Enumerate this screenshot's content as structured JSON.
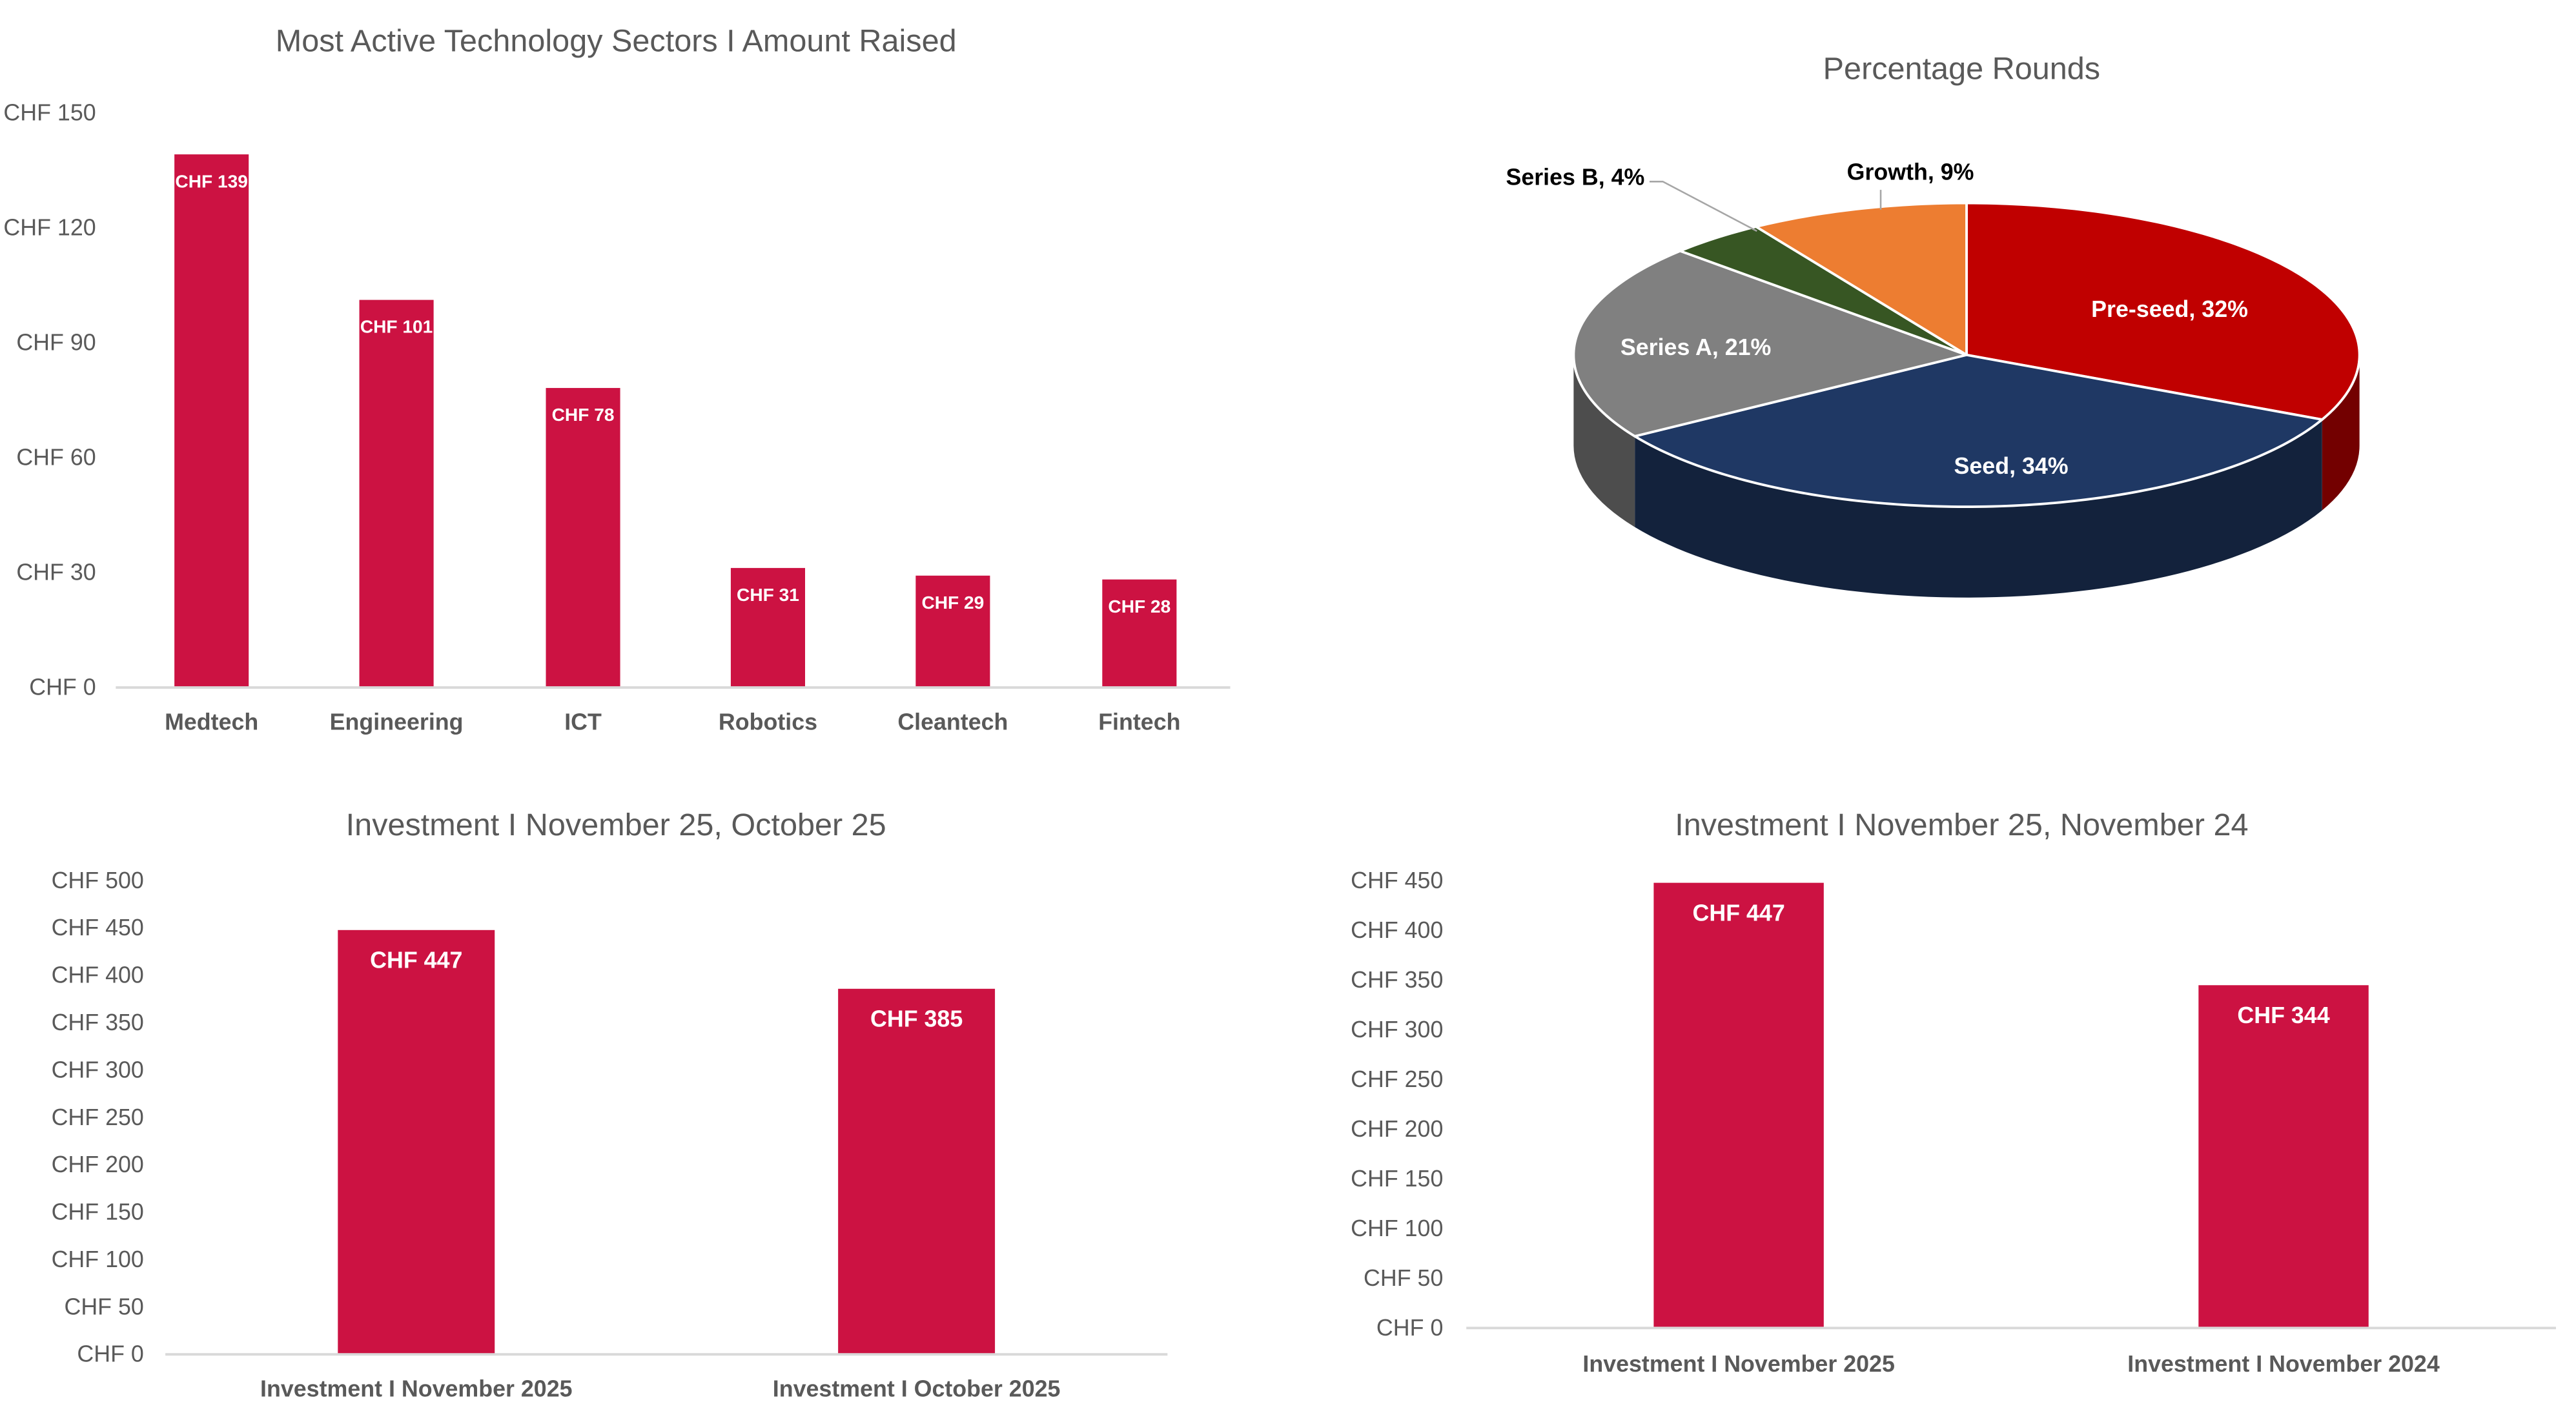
{
  "colors": {
    "bar": "#CC1242",
    "axis": "#D9D9D9",
    "text": "#595959"
  },
  "chart_data": [
    {
      "type": "bar",
      "title": "Most Active Technology Sectors I Amount Raised",
      "categories": [
        "Medtech",
        "Engineering",
        "ICT",
        "Robotics",
        "Cleantech",
        "Fintech"
      ],
      "values": [
        139,
        101,
        78,
        31,
        29,
        28
      ],
      "data_labels": [
        "CHF 139",
        "CHF 101",
        "CHF 78",
        "CHF 31",
        "CHF 29",
        "CHF 28"
      ],
      "yticks": [
        "CHF 0",
        "CHF 30",
        "CHF 60",
        "CHF 90",
        "CHF 120",
        "CHF 150"
      ],
      "ylim": [
        0,
        150
      ],
      "grid": false
    },
    {
      "type": "pie",
      "style": "3d",
      "title": "Percentage Rounds",
      "categories": [
        "Pre-seed",
        "Seed",
        "Series A",
        "Series B",
        "Growth"
      ],
      "values": [
        32,
        34,
        21,
        4,
        9
      ],
      "data_labels": [
        "Pre-seed, 32%",
        "Seed, 34%",
        "Series A, 21%",
        "Series B, 4%",
        "Growth, 9%"
      ],
      "colors": [
        "#C00000",
        "#1F3864",
        "#808080",
        "#375623",
        "#ED7D31"
      ]
    },
    {
      "type": "bar",
      "title": "Investment I November 25, October 25",
      "categories": [
        "Investment I November 2025",
        "Investment I October 2025"
      ],
      "values": [
        447,
        385
      ],
      "data_labels": [
        "CHF 447",
        "CHF 385"
      ],
      "yticks": [
        "CHF 0",
        "CHF 50",
        "CHF 100",
        "CHF 150",
        "CHF 200",
        "CHF 250",
        "CHF 300",
        "CHF 350",
        "CHF 400",
        "CHF 450",
        "CHF 500"
      ],
      "ylim": [
        0,
        500
      ],
      "grid": false
    },
    {
      "type": "bar",
      "title": "Investment I November 25, November 24",
      "categories": [
        "Investment I November 2025",
        "Investment I November 2024"
      ],
      "values": [
        447,
        344
      ],
      "data_labels": [
        "CHF 447",
        "CHF 344"
      ],
      "yticks": [
        "CHF 0",
        "CHF 50",
        "CHF 100",
        "CHF 150",
        "CHF 200",
        "CHF 250",
        "CHF 300",
        "CHF 350",
        "CHF 400",
        "CHF 450"
      ],
      "ylim": [
        0,
        450
      ],
      "grid": false
    }
  ]
}
